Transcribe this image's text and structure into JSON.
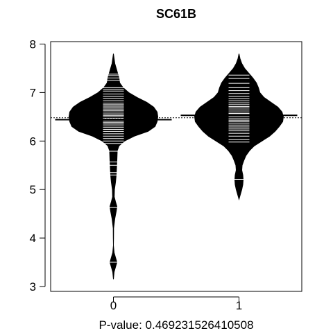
{
  "chart_data": {
    "type": "beanplot",
    "title": "SC61B",
    "xlabel": "P-value: 0.469231526410508",
    "ylabel": "",
    "categories": [
      "0",
      "1"
    ],
    "xlim": [
      -0.5,
      1.5
    ],
    "ylim": [
      2.9,
      8.05
    ],
    "yticks": [
      3,
      4,
      5,
      6,
      7,
      8
    ],
    "overall_mean": 6.48,
    "grid": false,
    "series": [
      {
        "category": "0",
        "mean": 6.44,
        "density": [
          [
            3.15,
            0.0
          ],
          [
            3.3,
            0.01
          ],
          [
            3.4,
            0.03
          ],
          [
            3.5,
            0.05
          ],
          [
            3.6,
            0.03
          ],
          [
            3.7,
            0.01
          ],
          [
            3.85,
            0.0
          ],
          [
            4.0,
            0.002
          ],
          [
            4.2,
            0.003
          ],
          [
            4.4,
            0.02
          ],
          [
            4.55,
            0.04
          ],
          [
            4.65,
            0.05
          ],
          [
            4.75,
            0.03
          ],
          [
            4.85,
            0.012
          ],
          [
            5.0,
            0.015
          ],
          [
            5.15,
            0.03
          ],
          [
            5.3,
            0.04
          ],
          [
            5.45,
            0.045
          ],
          [
            5.6,
            0.05
          ],
          [
            5.8,
            0.055
          ],
          [
            5.9,
            0.08
          ],
          [
            6.0,
            0.16
          ],
          [
            6.1,
            0.3
          ],
          [
            6.2,
            0.5
          ],
          [
            6.3,
            0.6
          ],
          [
            6.4,
            0.63
          ],
          [
            6.5,
            0.64
          ],
          [
            6.6,
            0.63
          ],
          [
            6.7,
            0.58
          ],
          [
            6.8,
            0.48
          ],
          [
            6.9,
            0.34
          ],
          [
            7.0,
            0.22
          ],
          [
            7.1,
            0.14
          ],
          [
            7.2,
            0.09
          ],
          [
            7.3,
            0.08
          ],
          [
            7.4,
            0.06
          ],
          [
            7.5,
            0.04
          ],
          [
            7.6,
            0.02
          ],
          [
            7.7,
            0.01
          ],
          [
            7.8,
            0.0
          ]
        ],
        "observations": [
          3.5,
          4.63,
          5.3,
          5.35,
          5.5,
          5.57,
          5.79,
          5.95,
          6.0,
          6.05,
          6.1,
          6.15,
          6.2,
          6.24,
          6.28,
          6.31,
          6.35,
          6.38,
          6.41,
          6.44,
          6.47,
          6.5,
          6.53,
          6.56,
          6.6,
          6.63,
          6.66,
          6.69,
          6.72,
          6.75,
          6.78,
          6.83,
          6.88,
          6.92,
          6.97,
          7.03,
          7.07,
          7.1,
          7.25,
          7.3,
          7.35,
          7.38
        ]
      },
      {
        "category": "1",
        "mean": 6.53,
        "density": [
          [
            4.8,
            0.0
          ],
          [
            4.9,
            0.02
          ],
          [
            5.0,
            0.04
          ],
          [
            5.1,
            0.055
          ],
          [
            5.2,
            0.06
          ],
          [
            5.3,
            0.055
          ],
          [
            5.4,
            0.04
          ],
          [
            5.5,
            0.045
          ],
          [
            5.6,
            0.07
          ],
          [
            5.7,
            0.1
          ],
          [
            5.8,
            0.15
          ],
          [
            5.9,
            0.22
          ],
          [
            6.0,
            0.33
          ],
          [
            6.1,
            0.44
          ],
          [
            6.2,
            0.52
          ],
          [
            6.3,
            0.58
          ],
          [
            6.4,
            0.63
          ],
          [
            6.5,
            0.64
          ],
          [
            6.6,
            0.62
          ],
          [
            6.7,
            0.56
          ],
          [
            6.8,
            0.46
          ],
          [
            6.9,
            0.36
          ],
          [
            7.0,
            0.3
          ],
          [
            7.1,
            0.28
          ],
          [
            7.2,
            0.25
          ],
          [
            7.3,
            0.2
          ],
          [
            7.4,
            0.14
          ],
          [
            7.5,
            0.08
          ],
          [
            7.6,
            0.04
          ],
          [
            7.7,
            0.015
          ],
          [
            7.8,
            0.0
          ]
        ],
        "observations": [
          5.21,
          5.98,
          6.03,
          6.1,
          6.16,
          6.21,
          6.25,
          6.29,
          6.33,
          6.37,
          6.4,
          6.43,
          6.46,
          6.5,
          6.54,
          6.57,
          6.6,
          6.64,
          6.68,
          6.71,
          6.75,
          6.79,
          6.83,
          6.87,
          6.92,
          6.98,
          7.04,
          7.1,
          7.19,
          7.29,
          7.36
        ]
      }
    ]
  }
}
